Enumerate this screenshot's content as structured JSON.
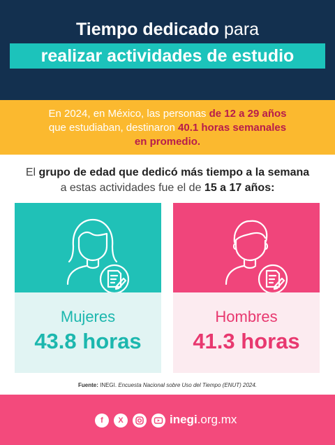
{
  "header": {
    "title_bold": "Tiempo dedicado",
    "title_rest": " para",
    "subtitle": "realizar actividades de estudio"
  },
  "summary": {
    "line1_a": "En 2024, en México, las personas ",
    "line1_b": "de 12 a 29 años",
    "line2_a": "que estudiaban, destinaron ",
    "line2_b": "40.1 horas semanales",
    "line3": "en promedio."
  },
  "intro": {
    "line1_a": "El ",
    "line1_b": "grupo de edad que dedicó más tiempo a la semana",
    "line2_a": "a estas actividades fue el de ",
    "line2_b": "15 a 17 años:"
  },
  "cards": [
    {
      "label": "Mujeres",
      "value": "43.8 horas",
      "icon": "woman-studying-icon",
      "color": "#20c1b7"
    },
    {
      "label": "Hombres",
      "value": "41.3 horas",
      "icon": "man-studying-icon",
      "color": "#f0457b"
    }
  ],
  "source": {
    "label": "Fuente:",
    "org": " INEGI. ",
    "title": "Encuesta Nacional sobre Uso del Tiempo (ENUT) 2024."
  },
  "footer": {
    "social_icons": [
      "facebook-icon",
      "x-icon",
      "instagram-icon",
      "youtube-icon"
    ],
    "site_bold": "inegi",
    "site_rest": ".org.mx"
  },
  "colors": {
    "navy": "#13304f",
    "teal": "#20c1b7",
    "yellow": "#fbb92f",
    "pink": "#f0457b"
  }
}
